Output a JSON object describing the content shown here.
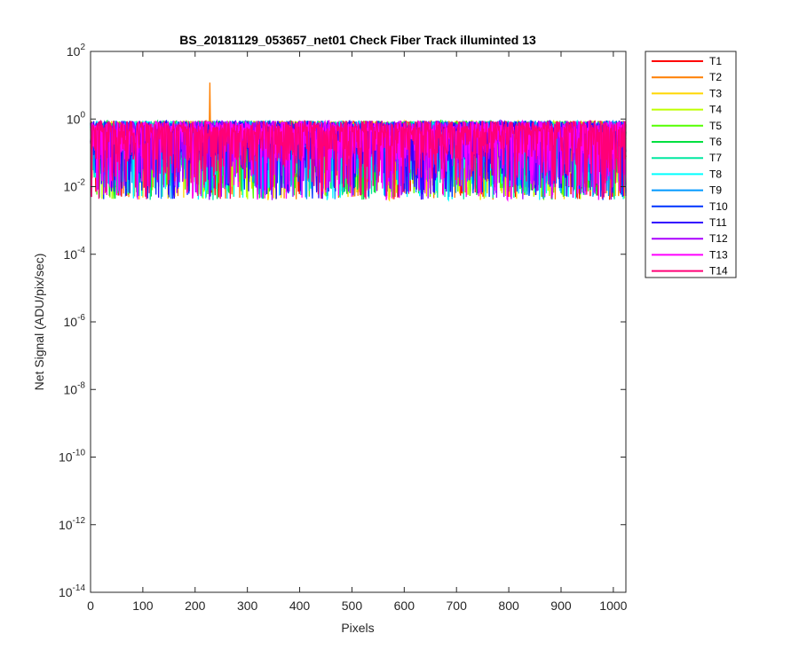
{
  "chart_data": {
    "type": "line",
    "title": "BS_20181129_053657_net01   Check Fiber     Track illuminted 13",
    "xlabel": "Pixels",
    "ylabel": "Net Signal (ADU/pix/sec)",
    "xlim": [
      0,
      1024
    ],
    "ylim": [
      1e-14,
      100
    ],
    "yscale": "log",
    "xticks": [
      0,
      100,
      200,
      300,
      400,
      500,
      600,
      700,
      800,
      900,
      1000
    ],
    "yticks": [
      {
        "base": "10",
        "exp": "-14"
      },
      {
        "base": "10",
        "exp": "-12"
      },
      {
        "base": "10",
        "exp": "-10"
      },
      {
        "base": "10",
        "exp": "-8"
      },
      {
        "base": "10",
        "exp": "-6"
      },
      {
        "base": "10",
        "exp": "-4"
      },
      {
        "base": "10",
        "exp": "-2"
      },
      {
        "base": "10",
        "exp": "0"
      },
      {
        "base": "10",
        "exp": "2"
      }
    ],
    "grid": false,
    "legend_position": "outside-right-top",
    "n_points_per_series": 1024,
    "value_range": [
      0.004,
      2.5
    ],
    "spike": {
      "series": "T2",
      "x": 228,
      "y": 12
    },
    "series": [
      {
        "name": "T1",
        "color": "#ff0000"
      },
      {
        "name": "T2",
        "color": "#ff7f00"
      },
      {
        "name": "T3",
        "color": "#ffd700"
      },
      {
        "name": "T4",
        "color": "#bfff00"
      },
      {
        "name": "T5",
        "color": "#55ff00"
      },
      {
        "name": "T6",
        "color": "#00e040"
      },
      {
        "name": "T7",
        "color": "#00e8a0"
      },
      {
        "name": "T8",
        "color": "#00ffff"
      },
      {
        "name": "T9",
        "color": "#0099ff"
      },
      {
        "name": "T10",
        "color": "#0033ff"
      },
      {
        "name": "T11",
        "color": "#3300ff"
      },
      {
        "name": "T12",
        "color": "#aa00ff"
      },
      {
        "name": "T13",
        "color": "#ff00ff"
      },
      {
        "name": "T14",
        "color": "#ff0077"
      }
    ]
  }
}
